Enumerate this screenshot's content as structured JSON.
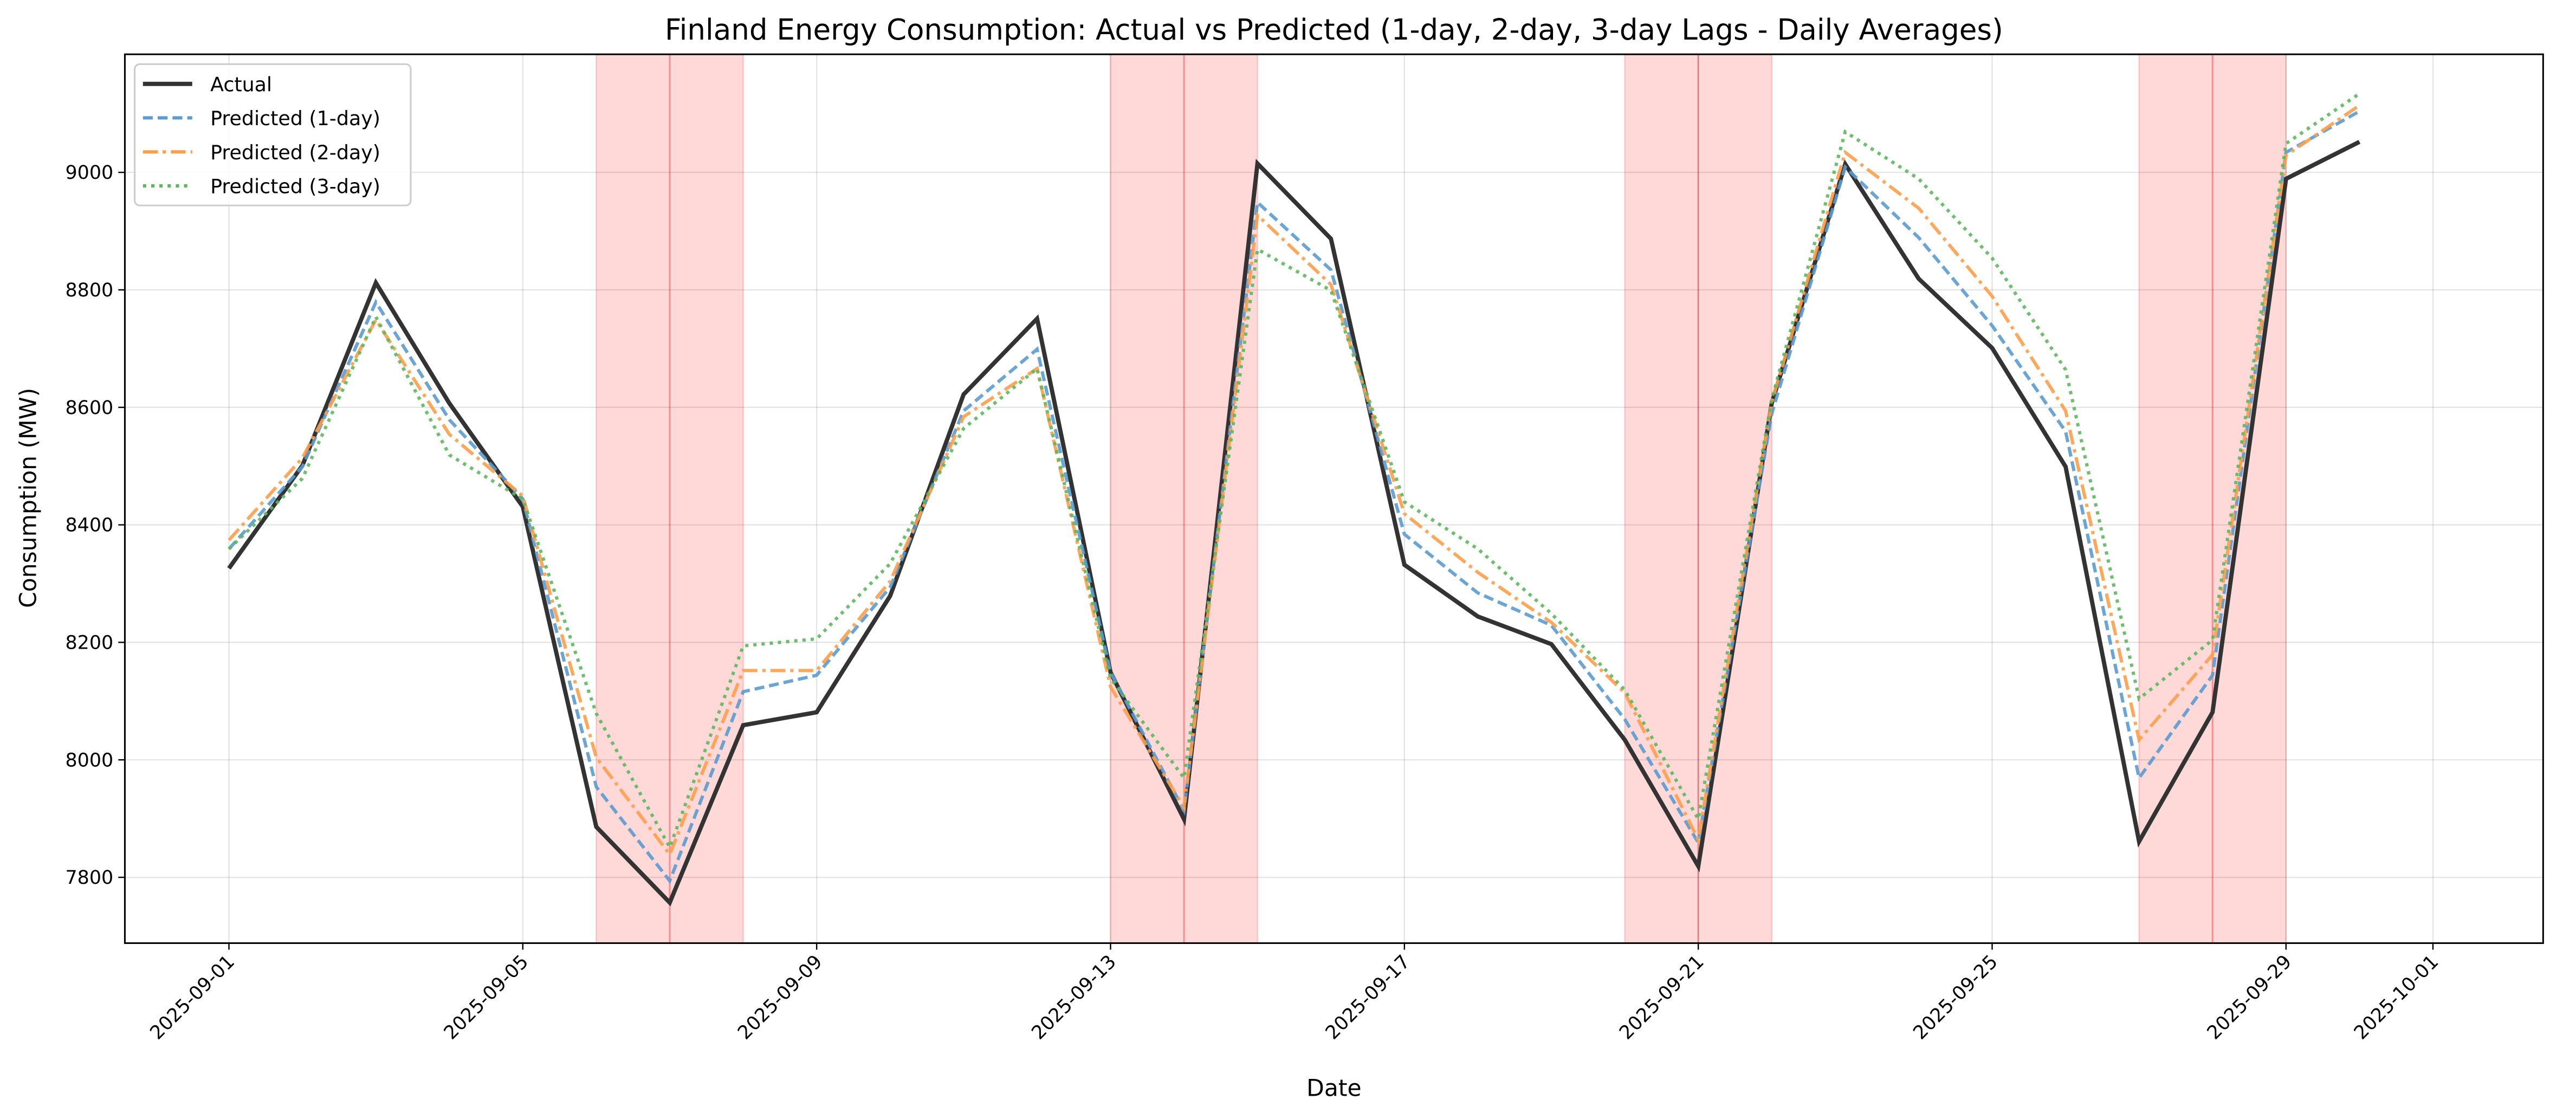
{
  "chart_data": {
    "type": "line",
    "title": "Finland Energy Consumption: Actual vs Predicted (1-day, 2-day, 3-day Lags - Daily Averages)",
    "xlabel": "Date",
    "ylabel": "Consumption (MW)",
    "x": [
      "2025-09-01",
      "2025-09-02",
      "2025-09-03",
      "2025-09-04",
      "2025-09-05",
      "2025-09-06",
      "2025-09-07",
      "2025-09-08",
      "2025-09-09",
      "2025-09-10",
      "2025-09-11",
      "2025-09-12",
      "2025-09-13",
      "2025-09-14",
      "2025-09-15",
      "2025-09-16",
      "2025-09-17",
      "2025-09-18",
      "2025-09-19",
      "2025-09-20",
      "2025-09-21",
      "2025-09-22",
      "2025-09-23",
      "2025-09-24",
      "2025-09-25",
      "2025-09-26",
      "2025-09-27",
      "2025-09-28",
      "2025-09-29",
      "2025-09-30"
    ],
    "series": [
      {
        "name": "Actual",
        "color": "#333333",
        "style": "solid",
        "values": [
          8326,
          8501,
          8812,
          8607,
          8431,
          7886,
          7757,
          8059,
          8081,
          8279,
          8622,
          8751,
          8149,
          7899,
          9015,
          8887,
          8332,
          8244,
          8197,
          8034,
          7819,
          8607,
          9014,
          8819,
          8701,
          8499,
          7861,
          8081,
          8989,
          9052
        ]
      },
      {
        "name": "Predicted (1-day)",
        "color": "#5a9bd0",
        "style": "dashed",
        "values": [
          8359,
          8499,
          8779,
          8579,
          8444,
          7954,
          7794,
          8116,
          8144,
          8294,
          8594,
          8699,
          8149,
          7914,
          8949,
          8834,
          8384,
          8284,
          8229,
          8069,
          7859,
          8589,
          9009,
          8889,
          8739,
          8559,
          7969,
          8144,
          9034,
          9104
        ]
      },
      {
        "name": "Predicted (2-day)",
        "color": "#ff9f4a",
        "style": "dashdot",
        "values": [
          8374,
          8514,
          8749,
          8554,
          8449,
          8004,
          7839,
          8152,
          8152,
          8304,
          8584,
          8666,
          8124,
          7919,
          8927,
          8809,
          8419,
          8319,
          8234,
          8114,
          7864,
          8609,
          9034,
          8939,
          8789,
          8594,
          8034,
          8179,
          9029,
          9114
        ]
      },
      {
        "name": "Predicted (3-day)",
        "color": "#5cb85c",
        "style": "dotted",
        "values": [
          8359,
          8479,
          8754,
          8519,
          8444,
          8079,
          7851,
          8194,
          8206,
          8334,
          8564,
          8666,
          8139,
          7969,
          8869,
          8799,
          8439,
          8359,
          8249,
          8119,
          7899,
          8614,
          9069,
          8989,
          8854,
          8664,
          8104,
          8204,
          9049,
          9134
        ]
      }
    ],
    "highlight_spans": [
      {
        "start": "2025-09-06",
        "end": "2025-09-08",
        "center": "2025-09-07"
      },
      {
        "start": "2025-09-13",
        "end": "2025-09-15",
        "center": "2025-09-14"
      },
      {
        "start": "2025-09-20",
        "end": "2025-09-22",
        "center": "2025-09-21"
      },
      {
        "start": "2025-09-27",
        "end": "2025-09-29",
        "center": "2025-09-28"
      }
    ],
    "highlight_color": "#ff9999",
    "xlim": [
      "2025-08-30T14:00",
      "2025-10-02T12:00"
    ],
    "ylim": [
      7688,
      9201
    ],
    "xticks": [
      "2025-09-01",
      "2025-09-05",
      "2025-09-09",
      "2025-09-13",
      "2025-09-17",
      "2025-09-21",
      "2025-09-25",
      "2025-09-29",
      "2025-10-01"
    ],
    "yticks": [
      7800,
      8000,
      8200,
      8400,
      8600,
      8800,
      9000
    ],
    "grid": true,
    "legend": "top-left"
  }
}
